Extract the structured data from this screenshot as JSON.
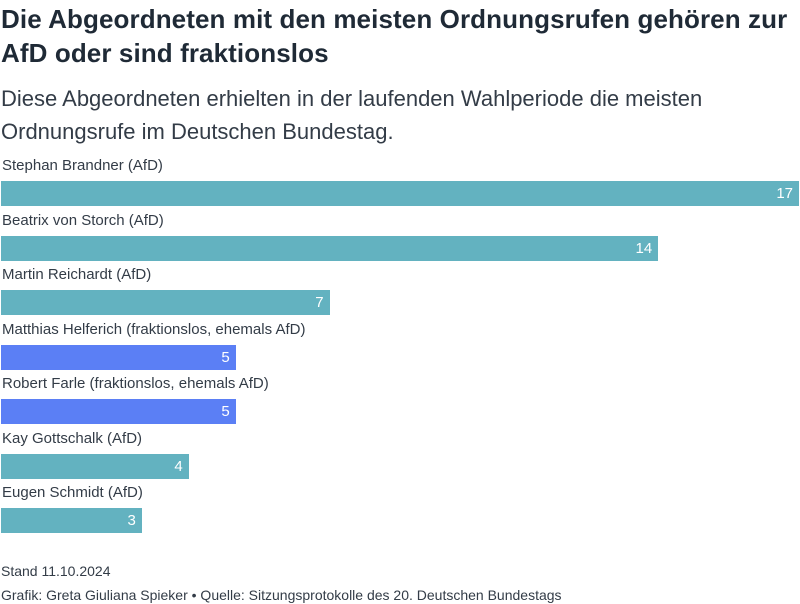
{
  "header": {
    "title": "Die Abgeordneten mit den meisten Ordnungsrufen gehören zur AfD oder sind fraktionslos",
    "subtitle": "Diese Abgeordneten erhielten in der laufenden Wahlperiode die meisten Ordnungsrufe im Deutschen Bundestag."
  },
  "colors": {
    "afd": "#63b2c0",
    "fraktionslos": "#5b7ff5"
  },
  "chart_data": {
    "type": "bar",
    "orientation": "horizontal",
    "title": "",
    "xlim": [
      0,
      17
    ],
    "categories": [
      "Stephan Brandner (AfD)",
      "Beatrix von Storch (AfD)",
      "Martin Reichardt (AfD)",
      "Matthias Helferich (fraktionslos, ehemals AfD)",
      "Robert Farle (fraktionslos, ehemals AfD)",
      "Kay Gottschalk (AfD)",
      "Eugen Schmidt (AfD)"
    ],
    "values": [
      17,
      14,
      7,
      5,
      5,
      4,
      3
    ],
    "groups": [
      "afd",
      "afd",
      "afd",
      "fraktionslos",
      "fraktionslos",
      "afd",
      "afd"
    ],
    "data_labels": [
      "17",
      "14",
      "7",
      "5",
      "5",
      "4",
      "3"
    ]
  },
  "footer": {
    "stand": "Stand 11.10.2024",
    "source": "Grafik: Greta Giuliana Spieker • Quelle: Sitzungsprotokolle des 20. Deutschen Bundestags"
  }
}
